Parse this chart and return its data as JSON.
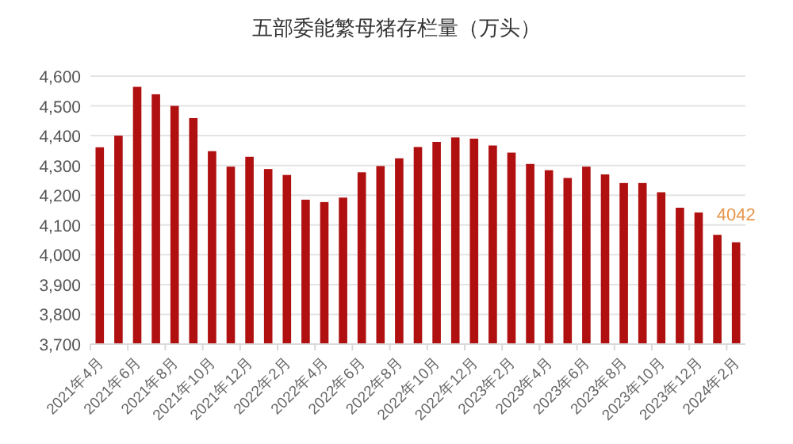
{
  "chart_data": {
    "type": "bar",
    "title": "五部委能繁母猪存栏量（万头）",
    "categories": [
      "2021年4月",
      null,
      "2021年6月",
      null,
      "2021年8月",
      null,
      "2021年10月",
      null,
      "2021年12月",
      null,
      "2022年2月",
      null,
      "2022年4月",
      null,
      "2022年6月",
      null,
      "2022年8月",
      null,
      "2022年10月",
      null,
      "2022年12月",
      null,
      "2023年2月",
      null,
      "2023年4月",
      null,
      "2023年6月",
      null,
      "2023年8月",
      null,
      "2023年10月",
      null,
      "2023年12月",
      null,
      "2024年2月"
    ],
    "values": [
      4361,
      4400,
      4564,
      4539,
      4500,
      4459,
      4348,
      4296,
      4329,
      4288,
      4268,
      4185,
      4177,
      4192,
      4277,
      4298,
      4324,
      4362,
      4379,
      4394,
      4390,
      4367,
      4343,
      4305,
      4284,
      4258,
      4296,
      4270,
      4241,
      4241,
      4210,
      4158,
      4142,
      4067,
      4042
    ],
    "value_labels": [
      null,
      null,
      null,
      null,
      null,
      null,
      null,
      null,
      null,
      null,
      null,
      null,
      null,
      null,
      null,
      null,
      null,
      null,
      null,
      null,
      null,
      null,
      null,
      null,
      null,
      null,
      null,
      null,
      null,
      null,
      null,
      null,
      null,
      null,
      "4042"
    ],
    "color": "#b01010",
    "ylim": [
      3700,
      4600
    ],
    "yticks": [
      {
        "value": 3700,
        "label": "3,700"
      },
      {
        "value": 3800,
        "label": "3,800"
      },
      {
        "value": 3900,
        "label": "3,900"
      },
      {
        "value": 4000,
        "label": "4,000"
      },
      {
        "value": 4100,
        "label": "4,100"
      },
      {
        "value": 4200,
        "label": "4,200"
      },
      {
        "value": 4300,
        "label": "4,300"
      },
      {
        "value": 4400,
        "label": "4,400"
      },
      {
        "value": 4500,
        "label": "4,500"
      },
      {
        "value": 4600,
        "label": "4,600"
      }
    ],
    "grid": "y"
  }
}
